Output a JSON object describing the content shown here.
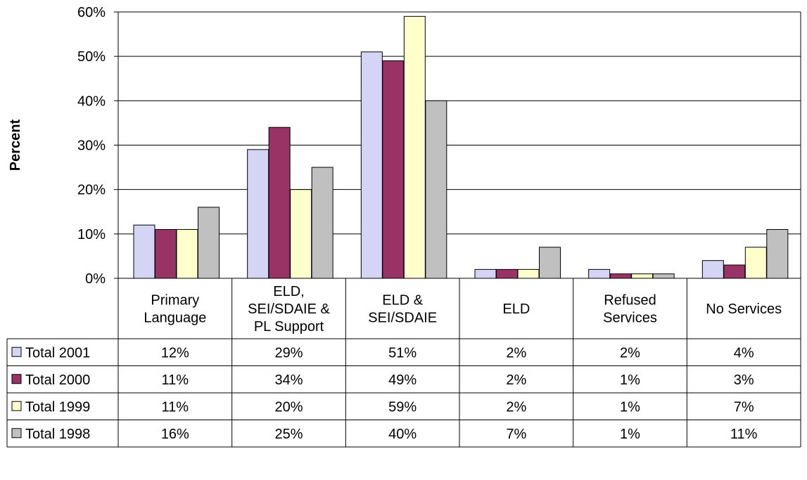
{
  "chart_data": {
    "type": "bar",
    "title": "",
    "xlabel": "",
    "ylabel": "Percent",
    "ylim": [
      0,
      60
    ],
    "y_ticks": [
      "0%",
      "10%",
      "20%",
      "30%",
      "40%",
      "50%",
      "60%"
    ],
    "categories": [
      [
        "Primary",
        "Language"
      ],
      [
        "ELD,",
        "SEI/SDAIE &",
        "PL Support"
      ],
      [
        "ELD &",
        "SEI/SDAIE"
      ],
      [
        "ELD"
      ],
      [
        "Refused",
        "Services"
      ],
      [
        "No Services"
      ]
    ],
    "series": [
      {
        "name": "Total 2001",
        "color": "#D4D4F5",
        "values": [
          12,
          29,
          51,
          2,
          2,
          4
        ],
        "labels": [
          "12%",
          "29%",
          "51%",
          "2%",
          "2%",
          "4%"
        ]
      },
      {
        "name": "Total 2000",
        "color": "#993366",
        "values": [
          11,
          34,
          49,
          2,
          1,
          3
        ],
        "labels": [
          "11%",
          "34%",
          "49%",
          "2%",
          "1%",
          "3%"
        ]
      },
      {
        "name": "Total 1999",
        "color": "#FFFFCC",
        "values": [
          11,
          20,
          59,
          2,
          1,
          7
        ],
        "labels": [
          "11%",
          "20%",
          "59%",
          "2%",
          "1%",
          "7%"
        ]
      },
      {
        "name": "Total 1998",
        "color": "#C0C0C0",
        "values": [
          16,
          25,
          40,
          7,
          1,
          11
        ],
        "labels": [
          "16%",
          "25%",
          "40%",
          "7%",
          "1%",
          "11%"
        ]
      }
    ],
    "grid": true,
    "legend": "data-table"
  }
}
